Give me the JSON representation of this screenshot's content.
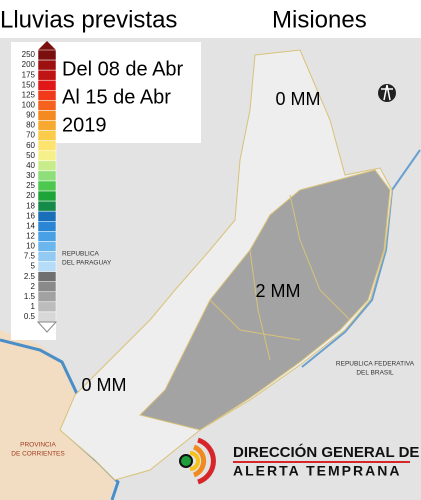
{
  "header": {
    "title": "Lluvias previstas",
    "region": "Misiones"
  },
  "period": {
    "lines": [
      "Del 08 de Abr",
      "Al 15 de Abr",
      "2019"
    ]
  },
  "legend": {
    "items": [
      {
        "label": "250",
        "color": "#7a0f0f"
      },
      {
        "label": "200",
        "color": "#9c1010"
      },
      {
        "label": "175",
        "color": "#c01414"
      },
      {
        "label": "150",
        "color": "#e01818"
      },
      {
        "label": "125",
        "color": "#f03a1a"
      },
      {
        "label": "100",
        "color": "#f4621e"
      },
      {
        "label": "90",
        "color": "#f68a22"
      },
      {
        "label": "80",
        "color": "#f8aa30"
      },
      {
        "label": "70",
        "color": "#fbcb4a"
      },
      {
        "label": "60",
        "color": "#fde46e"
      },
      {
        "label": "50",
        "color": "#f5f08a"
      },
      {
        "label": "40",
        "color": "#c9ec8a"
      },
      {
        "label": "30",
        "color": "#8ede7a"
      },
      {
        "label": "25",
        "color": "#4cc84e"
      },
      {
        "label": "20",
        "color": "#1fa43a"
      },
      {
        "label": "18",
        "color": "#168a48"
      },
      {
        "label": "16",
        "color": "#1a6fb8"
      },
      {
        "label": "14",
        "color": "#2a86d4"
      },
      {
        "label": "12",
        "color": "#4aa0e4"
      },
      {
        "label": "10",
        "color": "#6cb6ee"
      },
      {
        "label": "7.5",
        "color": "#92caf4"
      },
      {
        "label": "5",
        "color": "#b6dcf8"
      },
      {
        "label": "2.5",
        "color": "#707070"
      },
      {
        "label": "2",
        "color": "#8a8a8a"
      },
      {
        "label": "1.5",
        "color": "#a2a2a2"
      },
      {
        "label": "1",
        "color": "#bcbcbc"
      },
      {
        "label": "0.5",
        "color": "#d8d8d8"
      }
    ]
  },
  "map": {
    "labels": [
      "0 MM",
      "2 MM",
      "0 MM"
    ],
    "places": [
      [
        "REPUBLICA",
        "DEL PARAGUAY"
      ],
      [
        "REPUBLICA FEDERATIVA",
        "DEL BRASIL"
      ],
      [
        "PROVINCIA",
        "DE CORRIENTES"
      ]
    ]
  },
  "logo": {
    "line1": "DIRECCIÓN GENERAL DE",
    "line2": "ALERTA TEMPRANA"
  }
}
